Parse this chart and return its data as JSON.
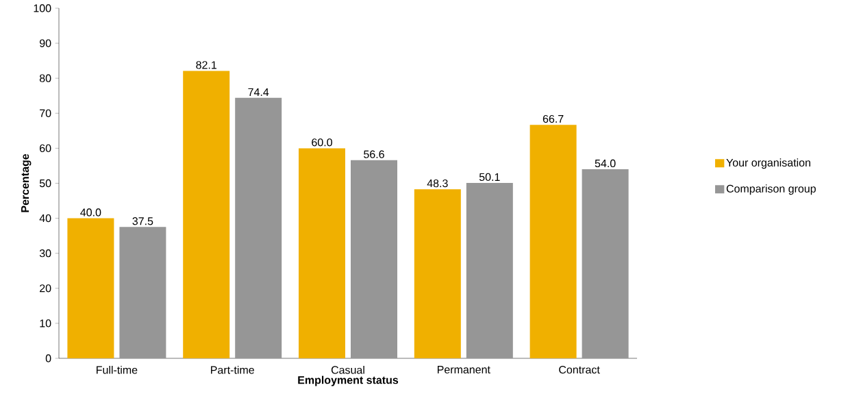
{
  "chart_data": {
    "type": "bar",
    "xlabel": "Employment status",
    "ylabel": "Percentage",
    "categories": [
      "Full-time",
      "Part-time",
      "Casual",
      "Permanent",
      "Contract"
    ],
    "series": [
      {
        "name": "Your organisation",
        "color": "#f0b000",
        "values": [
          40.0,
          82.1,
          60.0,
          48.3,
          66.7
        ],
        "value_labels": [
          "40.0",
          "82.1",
          "60.0",
          "48.3",
          "66.7"
        ]
      },
      {
        "name": "Comparison group",
        "color": "#969696",
        "values": [
          37.5,
          74.4,
          56.6,
          50.1,
          54.0
        ],
        "value_labels": [
          "37.5",
          "74.4",
          "56.6",
          "50.1",
          "54.0"
        ]
      }
    ],
    "ylim": [
      0,
      100
    ],
    "yticks": [
      0,
      10,
      20,
      30,
      40,
      50,
      60,
      70,
      80,
      90,
      100
    ],
    "legend": "right"
  }
}
